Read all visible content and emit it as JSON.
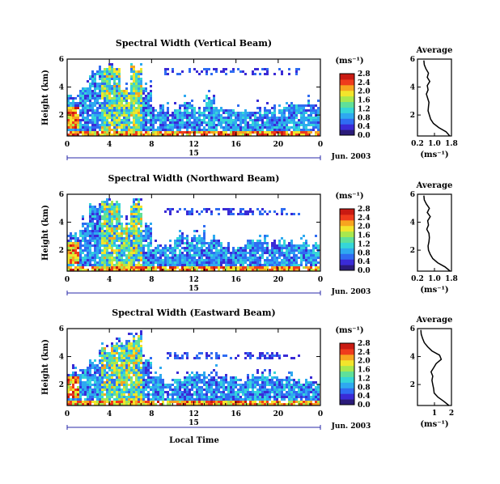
{
  "figure": {
    "xlabel": "Local Time",
    "date_label": "Jun. 2003",
    "day_label": "15",
    "average_title": "Average",
    "unit_label": "(ms⁻¹)",
    "colorscale": [
      "#2b1b7a",
      "#3a2bd6",
      "#2f6cf2",
      "#2ea9f0",
      "#35d6d8",
      "#5fe09a",
      "#a8e84e",
      "#f2e52c",
      "#f7a51f",
      "#ef3b1c",
      "#c91a12"
    ]
  },
  "chart_data": [
    {
      "type": "heatmap",
      "title": "Spectral Width (Vertical Beam)",
      "ylabel": "Height (km)",
      "x_ticks": [
        "0",
        "4",
        "8",
        "12",
        "16",
        "20",
        "0"
      ],
      "y_ticks": [
        "2",
        "4",
        "6"
      ],
      "xlim": [
        0,
        24
      ],
      "ylim": [
        0.5,
        6
      ],
      "colorbar_ticks": [
        "0.0",
        "0.4",
        "0.8",
        "1.2",
        "1.6",
        "2.0",
        "2.4",
        "2.8"
      ],
      "echo_top_km": [
        3.4,
        3.9,
        5.0,
        5.5,
        5.6,
        4.0,
        5.6,
        4.0,
        2.5,
        2.4,
        2.6,
        3.0,
        2.6,
        3.4,
        2.6,
        2.4,
        2.3,
        2.3,
        2.5,
        2.4,
        2.4,
        2.8,
        2.9,
        2.6
      ],
      "extra_layer_km": [
        5.0,
        5.4
      ],
      "average": {
        "x_ticks": [
          "0.2",
          "1.0",
          "1.8"
        ],
        "xlim": [
          0.2,
          1.8
        ],
        "y_ticks": [
          "2",
          "4",
          "6"
        ],
        "ylim": [
          0.5,
          6
        ],
        "height_km": [
          0.5,
          0.8,
          1.1,
          1.4,
          1.7,
          2.0,
          2.3,
          2.6,
          2.9,
          3.2,
          3.5,
          3.8,
          4.1,
          4.4,
          4.7,
          5.0,
          5.3,
          5.6,
          5.9
        ],
        "width": [
          1.72,
          1.55,
          1.2,
          0.95,
          0.82,
          0.76,
          0.7,
          0.72,
          0.74,
          0.68,
          0.62,
          0.7,
          0.66,
          0.78,
          0.66,
          0.72,
          0.6,
          0.52,
          0.5
        ]
      }
    },
    {
      "type": "heatmap",
      "title": "Spectral Width (Northward Beam)",
      "ylabel": "Height (km)",
      "x_ticks": [
        "0",
        "4",
        "8",
        "12",
        "16",
        "20",
        "0"
      ],
      "y_ticks": [
        "2",
        "4",
        "6"
      ],
      "xlim": [
        0,
        24
      ],
      "ylim": [
        0.5,
        6
      ],
      "colorbar_ticks": [
        "0.0",
        "0.4",
        "0.8",
        "1.2",
        "1.6",
        "2.0",
        "2.4",
        "2.8"
      ],
      "echo_top_km": [
        3.2,
        3.8,
        5.3,
        5.6,
        5.6,
        3.9,
        5.6,
        3.8,
        2.3,
        2.6,
        3.0,
        2.8,
        3.2,
        2.8,
        2.6,
        2.3,
        2.4,
        2.7,
        2.8,
        2.6,
        2.6,
        2.4,
        2.5,
        2.4
      ],
      "extra_layer_km": [
        4.6,
        5.2
      ],
      "average": {
        "x_ticks": [
          "0.2",
          "1.0",
          "1.8"
        ],
        "xlim": [
          0.2,
          1.8
        ],
        "y_ticks": [
          "2",
          "4",
          "6"
        ],
        "ylim": [
          0.5,
          6
        ],
        "height_km": [
          0.5,
          0.8,
          1.1,
          1.4,
          1.7,
          2.0,
          2.3,
          2.6,
          2.9,
          3.2,
          3.5,
          3.8,
          4.1,
          4.4,
          4.7,
          5.0,
          5.3,
          5.6,
          5.9
        ],
        "width": [
          1.74,
          1.5,
          1.15,
          0.92,
          0.8,
          0.72,
          0.7,
          0.74,
          0.76,
          0.74,
          0.64,
          0.72,
          0.68,
          0.8,
          0.66,
          0.76,
          0.62,
          0.52,
          0.5
        ]
      }
    },
    {
      "type": "heatmap",
      "title": "Spectral Width (Eastward Beam)",
      "ylabel": "Height (km)",
      "x_ticks": [
        "0",
        "4",
        "8",
        "12",
        "16",
        "20",
        "0"
      ],
      "y_ticks": [
        "2",
        "4",
        "6"
      ],
      "xlim": [
        0,
        24
      ],
      "ylim": [
        0.5,
        6
      ],
      "colorbar_ticks": [
        "0.0",
        "0.4",
        "0.8",
        "1.2",
        "1.6",
        "2.0",
        "2.4",
        "2.8"
      ],
      "echo_top_km": [
        2.8,
        3.2,
        3.8,
        4.6,
        5.0,
        5.2,
        5.5,
        3.8,
        2.6,
        2.3,
        2.4,
        2.6,
        2.8,
        2.5,
        2.8,
        2.4,
        2.2,
        2.6,
        2.8,
        2.9,
        2.5,
        2.4,
        2.3,
        2.2
      ],
      "extra_layer_km": [
        3.8,
        4.4
      ],
      "average": {
        "x_ticks": [
          "1",
          "2"
        ],
        "xlim": [
          0,
          2
        ],
        "y_ticks": [
          "2",
          "4",
          "6"
        ],
        "ylim": [
          0.5,
          6
        ],
        "height_km": [
          0.5,
          0.8,
          1.1,
          1.4,
          1.7,
          2.0,
          2.3,
          2.6,
          2.9,
          3.2,
          3.5,
          3.8,
          4.1,
          4.4,
          4.7,
          5.0,
          5.3,
          5.6,
          5.9
        ],
        "width": [
          1.85,
          1.55,
          1.2,
          0.98,
          0.95,
          0.9,
          0.85,
          0.9,
          0.8,
          0.95,
          1.1,
          1.4,
          1.3,
          0.85,
          0.6,
          0.4,
          0.3,
          0.22,
          0.2
        ]
      }
    }
  ]
}
